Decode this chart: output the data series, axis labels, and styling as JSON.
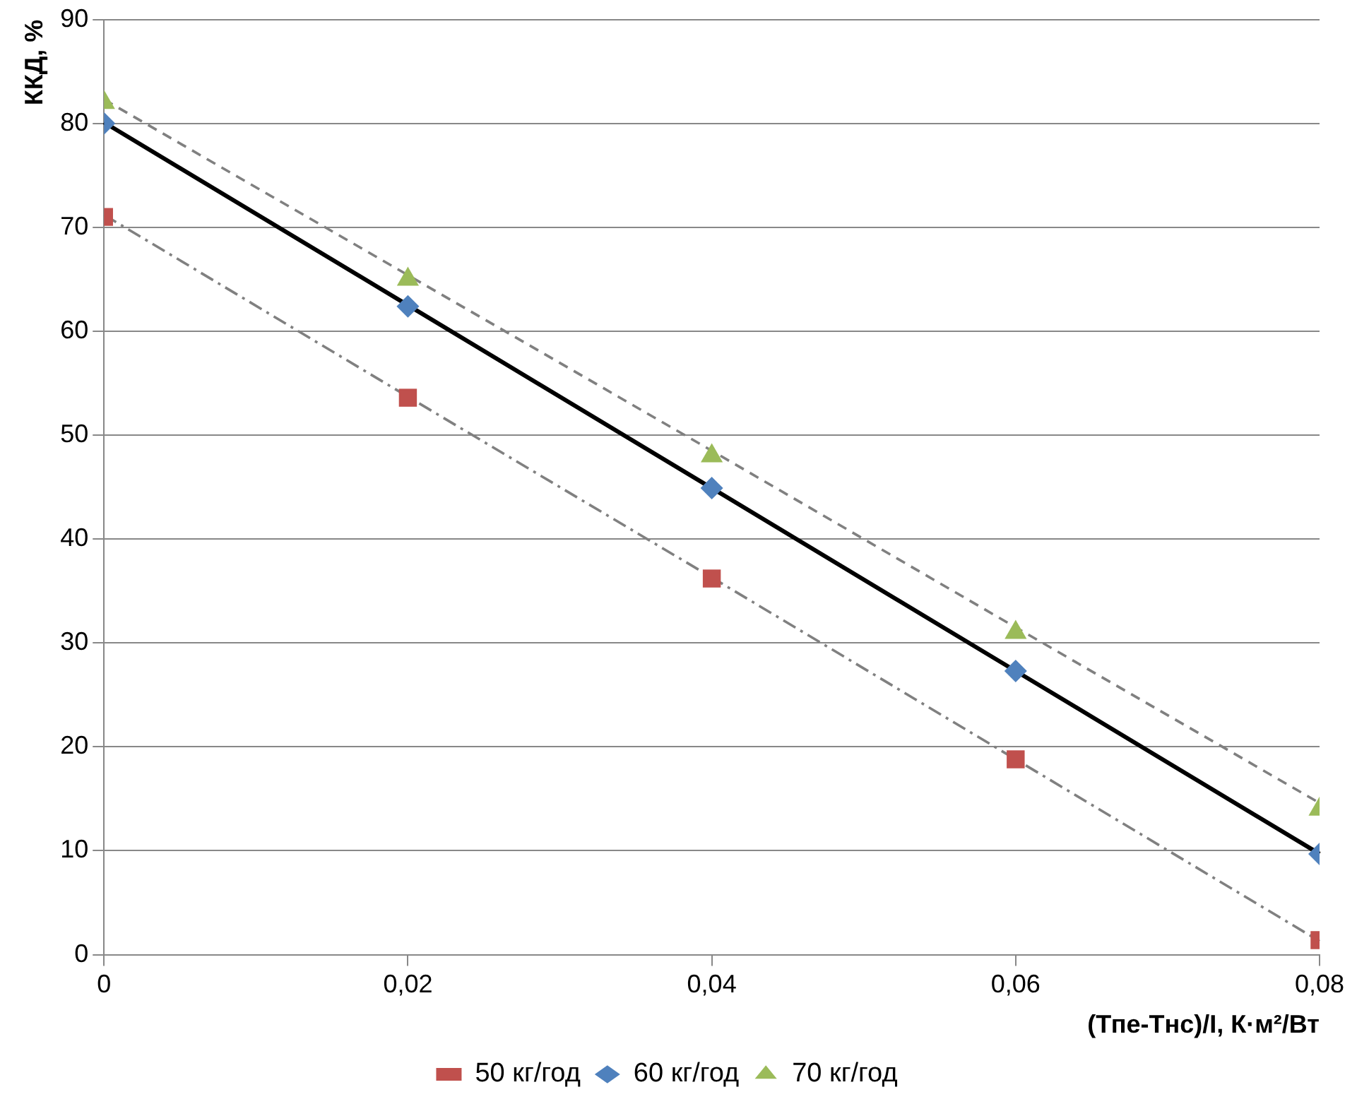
{
  "chart_data": {
    "type": "scatter",
    "xlabel": "(Тпе-Тнс)/I, К·м²/Вт",
    "ylabel": "ККД, %",
    "x": [
      0,
      0.02,
      0.04,
      0.06,
      0.08
    ],
    "series": [
      {
        "name": "50 кг/год",
        "color": "#c0504d",
        "marker": "square",
        "values": [
          71,
          53.6,
          36.2,
          18.8,
          1.4
        ]
      },
      {
        "name": "60 кг/год",
        "color": "#4f81bd",
        "marker": "diamond",
        "values": [
          80,
          62.4,
          44.9,
          27.3,
          9.7
        ]
      },
      {
        "name": "70 кг/год",
        "color": "#9bbb59",
        "marker": "triangle",
        "values": [
          82,
          65,
          48,
          31,
          14
        ]
      },
      {
        "type": "line",
        "color": "#808080",
        "line_style": "dotted",
        "values": [
          71.2,
          53.7,
          36.3,
          18.8,
          1.3
        ]
      },
      {
        "type": "line",
        "color": "#000000",
        "line_style": "solid",
        "values": [
          80.1,
          62.5,
          44.9,
          27.3,
          9.7
        ]
      },
      {
        "type": "line",
        "color": "#808080",
        "line_style": "dashed",
        "values": [
          82.3,
          65.4,
          48.5,
          31.5,
          14.6
        ]
      }
    ],
    "xlim": [
      0,
      0.08
    ],
    "xticks": [
      0,
      {
        "value": 0.02,
        "label": "0,02"
      },
      {
        "value": 0.04,
        "label": "0,04"
      },
      {
        "value": 0.06,
        "label": "0,06"
      },
      {
        "value": 0.08,
        "label": "0,08"
      }
    ],
    "ylim": [
      0,
      90
    ],
    "yticks": [
      0,
      10,
      20,
      30,
      40,
      50,
      60,
      70,
      80,
      90
    ],
    "grid": "y",
    "legend": "bottom"
  }
}
